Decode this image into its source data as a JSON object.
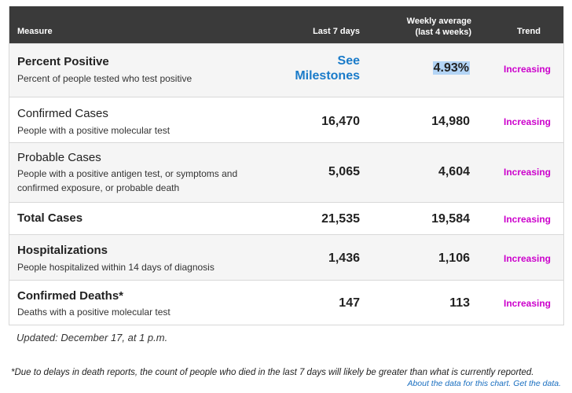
{
  "header": {
    "measure": "Measure",
    "last7": "Last 7 days",
    "weekly_line1": "Weekly average",
    "weekly_line2": "(last 4 weeks)",
    "trend": "Trend"
  },
  "rows": [
    {
      "title": "Percent Positive",
      "subtitle": "Percent of people tested who test positive",
      "last7_line1": "See",
      "last7_line2": "Milestones",
      "weekly": "4.93%",
      "trend": "Increasing"
    },
    {
      "title": "Confirmed Cases",
      "subtitle": "People with a positive molecular test",
      "last7": "16,470",
      "weekly": "14,980",
      "trend": "Increasing"
    },
    {
      "title": "Probable Cases",
      "subtitle_line1": "People with a positive antigen test, or symptoms and",
      "subtitle_line2": "confirmed exposure, or probable death",
      "last7": "5,065",
      "weekly": "4,604",
      "trend": "Increasing"
    },
    {
      "title": "Total Cases",
      "last7": "21,535",
      "weekly": "19,584",
      "trend": "Increasing"
    },
    {
      "title": "Hospitalizations",
      "subtitle": "People hospitalized within 14 days of diagnosis",
      "last7": "1,436",
      "weekly": "1,106",
      "trend": "Increasing"
    },
    {
      "title": "Confirmed Deaths*",
      "subtitle": "Deaths with a positive molecular test",
      "last7": "147",
      "weekly": "113",
      "trend": "Increasing"
    }
  ],
  "updated": "Updated: December 17, at 1 p.m.",
  "footnote": "*Due to delays in death reports, the count of people who died in the last 7 days will likely be greater than what is currently reported.",
  "links": {
    "about": "About the data for this chart.",
    "get": "Get the data."
  },
  "colors": {
    "header_bg": "#3a3a3a",
    "trend": "#cc00cc",
    "link": "#1a7bc9",
    "highlight": "#b3d4f5"
  }
}
